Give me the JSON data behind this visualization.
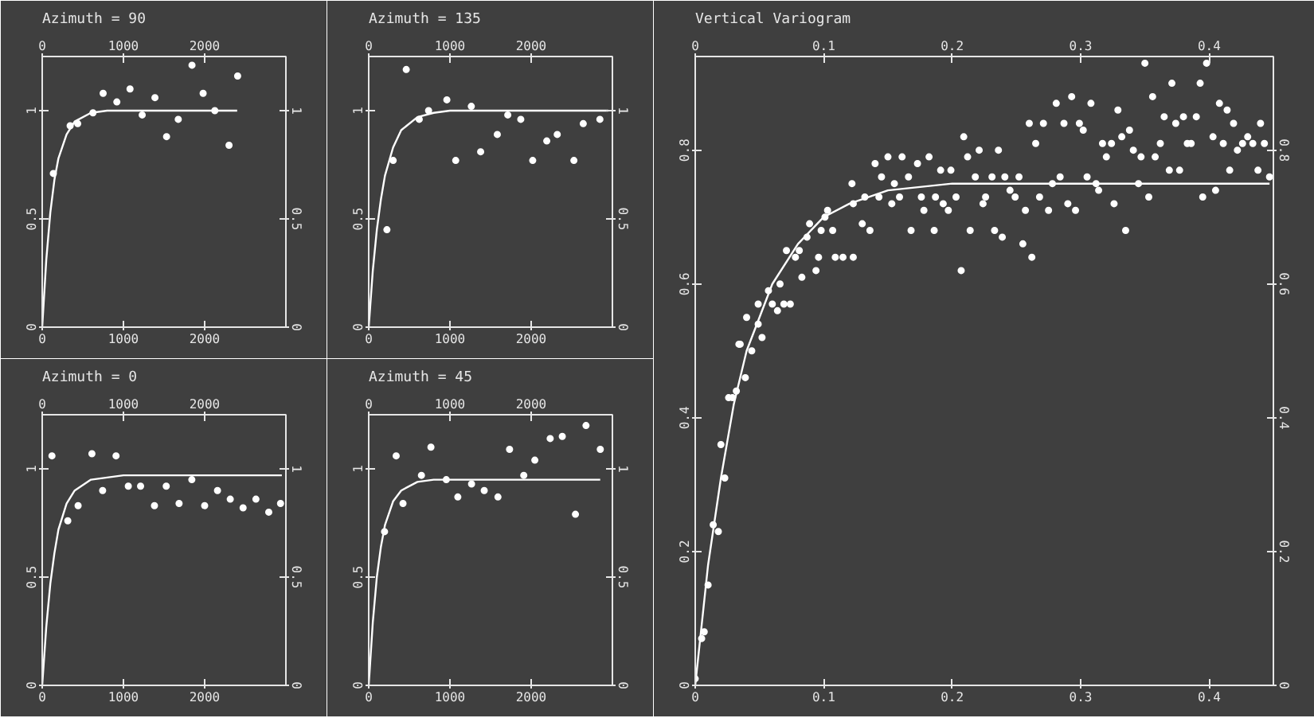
{
  "chart_data": [
    {
      "type": "scatter",
      "title": "Azimuth = 90",
      "marker": "circle",
      "xlim": [
        0,
        3000
      ],
      "ylim": [
        0,
        1.25
      ],
      "xticks": [
        0,
        1000,
        2000
      ],
      "yticks": [
        0,
        0.5,
        1
      ],
      "x2lim": [
        0,
        3000
      ],
      "x2ticks": [
        0,
        1000,
        2000
      ],
      "y2lim": [
        0,
        1.25
      ],
      "y2ticks": [
        0,
        0.5,
        1
      ],
      "series": [
        {
          "color": "#ffffff",
          "x": [
            137,
            344,
            437,
            625,
            750,
            919,
            1081,
            1231,
            1388,
            1531,
            1675,
            1844,
            1981,
            2125,
            2300,
            2406
          ],
          "values": [
            0.71,
            0.93,
            0.94,
            0.99,
            1.08,
            1.04,
            1.1,
            0.98,
            1.06,
            0.88,
            0.96,
            1.21,
            1.08,
            1.0,
            0.84,
            1.16
          ]
        },
        {
          "type": "line",
          "color": "#ffffff",
          "x": [
            0,
            50,
            100,
            150,
            200,
            300,
            400,
            600,
            800,
            1000,
            2400
          ],
          "marker": "none",
          "values": [
            0,
            0.31,
            0.53,
            0.68,
            0.78,
            0.89,
            0.95,
            0.99,
            1.0,
            1.0,
            1.0
          ]
        }
      ]
    },
    {
      "type": "scatter",
      "title": "Azimuth = 135",
      "marker": "circle",
      "xlim": [
        0,
        3000
      ],
      "ylim": [
        0,
        1.25
      ],
      "xticks": [
        0,
        1000,
        2000
      ],
      "yticks": [
        0,
        0.5,
        1
      ],
      "x2lim": [
        0,
        3000
      ],
      "x2ticks": [
        0,
        1000,
        2000
      ],
      "y2lim": [
        0,
        1.25
      ],
      "y2ticks": [
        0,
        0.5,
        1
      ],
      "series": [
        {
          "color": "#ffffff",
          "x": [
            224,
            301,
            462,
            622,
            737,
            962,
            1071,
            1263,
            1378,
            1583,
            1712,
            1872,
            2019,
            2192,
            2321,
            2526,
            2641,
            2846
          ],
          "values": [
            0.45,
            0.77,
            1.19,
            0.96,
            1.0,
            1.05,
            0.77,
            1.02,
            0.81,
            0.89,
            0.98,
            0.96,
            0.77,
            0.86,
            0.89,
            0.77,
            0.94,
            0.96
          ]
        },
        {
          "type": "line",
          "color": "#ffffff",
          "x": [
            0,
            50,
            100,
            150,
            200,
            300,
            400,
            600,
            800,
            1000,
            2950
          ],
          "marker": "none",
          "values": [
            0,
            0.26,
            0.45,
            0.59,
            0.7,
            0.83,
            0.91,
            0.97,
            0.99,
            1.0,
            1.0
          ]
        }
      ]
    },
    {
      "type": "scatter",
      "title": "Azimuth = 0",
      "marker": "circle",
      "xlim": [
        0,
        3000
      ],
      "ylim": [
        0,
        1.25
      ],
      "xticks": [
        0,
        1000,
        2000
      ],
      "yticks": [
        0,
        0.5,
        1
      ],
      "x2lim": [
        0,
        3000
      ],
      "x2ticks": [
        0,
        1000,
        2000
      ],
      "y2lim": [
        0,
        1.25
      ],
      "y2ticks": [
        0,
        0.5,
        1
      ],
      "series": [
        {
          "color": "#ffffff",
          "x": [
            120,
            315,
            442,
            612,
            744,
            909,
            1060,
            1211,
            1382,
            1527,
            1685,
            1842,
            2000,
            2158,
            2315,
            2473,
            2631,
            2789,
            2934
          ],
          "values": [
            1.06,
            0.76,
            0.83,
            1.07,
            0.9,
            1.06,
            0.92,
            0.92,
            0.83,
            0.92,
            0.84,
            0.95,
            0.83,
            0.9,
            0.86,
            0.82,
            0.86,
            0.8,
            0.84
          ]
        },
        {
          "type": "line",
          "color": "#ffffff",
          "x": [
            0,
            50,
            100,
            150,
            200,
            300,
            400,
            600,
            800,
            1000,
            2950
          ],
          "marker": "none",
          "values": [
            0,
            0.27,
            0.47,
            0.61,
            0.72,
            0.84,
            0.9,
            0.95,
            0.96,
            0.97,
            0.97
          ]
        }
      ]
    },
    {
      "type": "scatter",
      "title": "Azimuth = 45",
      "marker": "circle",
      "xlim": [
        0,
        3000
      ],
      "ylim": [
        0,
        1.25
      ],
      "xticks": [
        0,
        1000,
        2000
      ],
      "yticks": [
        0,
        0.5,
        1
      ],
      "x2lim": [
        0,
        3000
      ],
      "x2ticks": [
        0,
        1000,
        2000
      ],
      "y2lim": [
        0,
        1.25
      ],
      "y2ticks": [
        0,
        0.5,
        1
      ],
      "series": [
        {
          "color": "#ffffff",
          "x": [
            195,
            338,
            422,
            649,
            766,
            955,
            1097,
            1266,
            1422,
            1591,
            1734,
            1909,
            2045,
            2234,
            2383,
            2545,
            2675,
            2851
          ],
          "values": [
            0.71,
            1.06,
            0.84,
            0.97,
            1.1,
            0.95,
            0.87,
            0.93,
            0.9,
            0.87,
            1.09,
            0.97,
            1.04,
            1.14,
            1.15,
            0.79,
            1.2,
            1.09
          ]
        },
        {
          "type": "line",
          "color": "#ffffff",
          "x": [
            0,
            50,
            100,
            150,
            200,
            300,
            400,
            600,
            800,
            1000,
            2850
          ],
          "marker": "none",
          "values": [
            0,
            0.29,
            0.5,
            0.64,
            0.74,
            0.85,
            0.9,
            0.94,
            0.95,
            0.95,
            0.95
          ]
        }
      ]
    },
    {
      "type": "scatter",
      "title": "Vertical Variogram",
      "marker": "circle",
      "xlim": [
        0,
        0.45
      ],
      "ylim": [
        0,
        0.94
      ],
      "xticks": [
        0,
        0.1,
        0.2,
        0.3,
        0.4
      ],
      "yticks": [
        0,
        0.2,
        0.4,
        0.6,
        0.8
      ],
      "x2lim": [
        0,
        0.45
      ],
      "x2ticks": [
        0,
        0.1,
        0.2,
        0.3,
        0.4
      ],
      "y2lim": [
        0,
        0.94
      ],
      "y2ticks": [
        0,
        0.2,
        0.4,
        0.6,
        0.8
      ],
      "series": [
        {
          "color": "#ffffff",
          "x": [
            0,
            0.005,
            0.007,
            0.01,
            0.014,
            0.018,
            0.023,
            0.02,
            0.026,
            0.029,
            0.032,
            0.039,
            0.044,
            0.035,
            0.034,
            0.04,
            0.049,
            0.052,
            0.049,
            0.057,
            0.06,
            0.064,
            0.069,
            0.074,
            0.066,
            0.071,
            0.078,
            0.081,
            0.083,
            0.089,
            0.094,
            0.096,
            0.087,
            0.098,
            0.101,
            0.103,
            0.107,
            0.109,
            0.115,
            0.123,
            0.122,
            0.123,
            0.13,
            0.132,
            0.136,
            0.14,
            0.145,
            0.143,
            0.15,
            0.153,
            0.155,
            0.159,
            0.161,
            0.166,
            0.168,
            0.173,
            0.176,
            0.178,
            0.182,
            0.186,
            0.187,
            0.191,
            0.193,
            0.197,
            0.199,
            0.203,
            0.207,
            0.209,
            0.212,
            0.214,
            0.218,
            0.221,
            0.224,
            0.226,
            0.231,
            0.233,
            0.236,
            0.239,
            0.241,
            0.245,
            0.249,
            0.252,
            0.255,
            0.257,
            0.26,
            0.262,
            0.265,
            0.268,
            0.271,
            0.275,
            0.278,
            0.281,
            0.284,
            0.287,
            0.29,
            0.293,
            0.296,
            0.299,
            0.302,
            0.305,
            0.308,
            0.312,
            0.314,
            0.317,
            0.32,
            0.324,
            0.326,
            0.329,
            0.332,
            0.335,
            0.338,
            0.341,
            0.345,
            0.347,
            0.35,
            0.353,
            0.356,
            0.358,
            0.362,
            0.365,
            0.369,
            0.371,
            0.374,
            0.377,
            0.38,
            0.383,
            0.386,
            0.39,
            0.393,
            0.395,
            0.398,
            0.403,
            0.405,
            0.408,
            0.411,
            0.414,
            0.416,
            0.419,
            0.422,
            0.426,
            0.43,
            0.434,
            0.438,
            0.44,
            0.443,
            0.447
          ],
          "values": [
            0.01,
            0.07,
            0.08,
            0.15,
            0.24,
            0.23,
            0.31,
            0.36,
            0.43,
            0.43,
            0.44,
            0.46,
            0.5,
            0.51,
            0.51,
            0.55,
            0.54,
            0.52,
            0.57,
            0.59,
            0.57,
            0.56,
            0.57,
            0.57,
            0.6,
            0.65,
            0.64,
            0.65,
            0.61,
            0.69,
            0.62,
            0.64,
            0.67,
            0.68,
            0.7,
            0.71,
            0.68,
            0.64,
            0.64,
            0.64,
            0.75,
            0.72,
            0.69,
            0.73,
            0.68,
            0.78,
            0.76,
            0.73,
            0.79,
            0.72,
            0.75,
            0.73,
            0.79,
            0.76,
            0.68,
            0.78,
            0.73,
            0.71,
            0.79,
            0.68,
            0.73,
            0.77,
            0.72,
            0.71,
            0.77,
            0.73,
            0.62,
            0.82,
            0.79,
            0.68,
            0.76,
            0.8,
            0.72,
            0.73,
            0.76,
            0.68,
            0.8,
            0.67,
            0.76,
            0.74,
            0.73,
            0.76,
            0.66,
            0.71,
            0.84,
            0.64,
            0.81,
            0.73,
            0.84,
            0.71,
            0.75,
            0.87,
            0.76,
            0.84,
            0.72,
            0.88,
            0.71,
            0.84,
            0.83,
            0.76,
            0.87,
            0.75,
            0.74,
            0.81,
            0.79,
            0.81,
            0.72,
            0.86,
            0.82,
            0.68,
            0.83,
            0.8,
            0.75,
            0.79,
            0.93,
            0.73,
            0.88,
            0.79,
            0.81,
            0.85,
            0.77,
            0.9,
            0.84,
            0.77,
            0.85,
            0.81,
            0.81,
            0.85,
            0.9,
            0.73,
            0.93,
            0.82,
            0.74,
            0.87,
            0.81,
            0.86,
            0.77,
            0.84,
            0.8,
            0.81,
            0.82,
            0.81,
            0.77,
            0.84,
            0.81,
            0.76
          ]
        },
        {
          "type": "line",
          "color": "#ffffff",
          "x": [
            0,
            0.01,
            0.02,
            0.03,
            0.04,
            0.06,
            0.08,
            0.1,
            0.12,
            0.15,
            0.2,
            0.447
          ],
          "marker": "none",
          "values": [
            0,
            0.18,
            0.31,
            0.42,
            0.5,
            0.6,
            0.66,
            0.7,
            0.72,
            0.74,
            0.75,
            0.75
          ]
        }
      ]
    }
  ]
}
